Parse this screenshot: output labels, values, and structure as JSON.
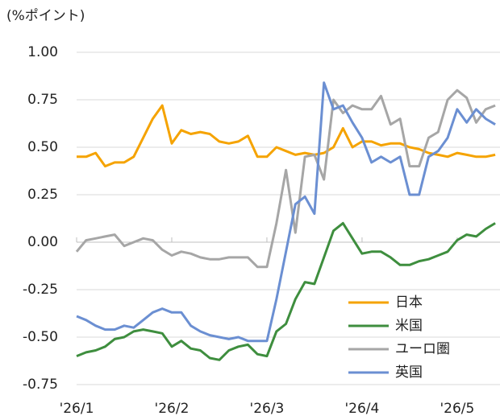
{
  "chart_data": {
    "type": "line",
    "y_axis_label": "(%ポイント)",
    "x": [
      0,
      2,
      4,
      6,
      8,
      10,
      12,
      14,
      16,
      18,
      20,
      22,
      24,
      26,
      28,
      30,
      32,
      34,
      36,
      38,
      40,
      42,
      44,
      46,
      48,
      50,
      52,
      54,
      56,
      58,
      60,
      62,
      64,
      66,
      68,
      70,
      72,
      74,
      76,
      78,
      80,
      82,
      84,
      86,
      88
    ],
    "xlim": [
      0,
      89
    ],
    "xticks": [
      {
        "value": 0,
        "label": "'26/1"
      },
      {
        "value": 20,
        "label": "'26/2"
      },
      {
        "value": 40,
        "label": "'26/3"
      },
      {
        "value": 60,
        "label": "'26/4"
      },
      {
        "value": 80,
        "label": "'26/5"
      }
    ],
    "ylim": [
      -0.75,
      1.0
    ],
    "yticks": [
      {
        "value": 1.0,
        "label": "1.00"
      },
      {
        "value": 0.75,
        "label": "0.75"
      },
      {
        "value": 0.5,
        "label": "0.50"
      },
      {
        "value": 0.25,
        "label": "0.25"
      },
      {
        "value": 0,
        "label": "0.00"
      },
      {
        "value": -0.25,
        "label": "-0.25"
      },
      {
        "value": -0.5,
        "label": "-0.50"
      },
      {
        "value": -0.75,
        "label": "-0.75"
      }
    ],
    "grid": true,
    "legend": "lower-right",
    "series": [
      {
        "name": "日本",
        "color": "#f5a300",
        "values": [
          0.45,
          0.45,
          0.47,
          0.4,
          0.42,
          0.42,
          0.45,
          0.55,
          0.65,
          0.72,
          0.52,
          0.59,
          0.57,
          0.58,
          0.57,
          0.53,
          0.52,
          0.53,
          0.56,
          0.45,
          0.45,
          0.5,
          0.48,
          0.46,
          0.47,
          0.46,
          0.47,
          0.5,
          0.6,
          0.5,
          0.53,
          0.53,
          0.51,
          0.52,
          0.52,
          0.5,
          0.49,
          0.47,
          0.46,
          0.45,
          0.47,
          0.46,
          0.45,
          0.45,
          0.46
        ]
      },
      {
        "name": "米国",
        "color": "#3e8e3e",
        "values": [
          -0.6,
          -0.58,
          -0.57,
          -0.55,
          -0.51,
          -0.5,
          -0.47,
          -0.46,
          -0.47,
          -0.48,
          -0.55,
          -0.52,
          -0.56,
          -0.57,
          -0.61,
          -0.62,
          -0.57,
          -0.55,
          -0.54,
          -0.59,
          -0.6,
          -0.47,
          -0.43,
          -0.3,
          -0.21,
          -0.22,
          -0.08,
          0.06,
          0.1,
          0.02,
          -0.06,
          -0.05,
          -0.05,
          -0.08,
          -0.12,
          -0.12,
          -0.1,
          -0.09,
          -0.07,
          -0.05,
          0.01,
          0.04,
          0.03,
          0.07,
          0.1
        ]
      },
      {
        "name": "ユーロ圏",
        "color": "#a6a6a6",
        "values": [
          -0.05,
          0.01,
          0.02,
          0.03,
          0.04,
          -0.02,
          0.0,
          0.02,
          0.01,
          -0.04,
          -0.07,
          -0.05,
          -0.06,
          -0.08,
          -0.09,
          -0.09,
          -0.08,
          -0.08,
          -0.08,
          -0.13,
          -0.13,
          0.1,
          0.38,
          0.05,
          0.45,
          0.46,
          0.33,
          0.75,
          0.68,
          0.72,
          0.7,
          0.7,
          0.77,
          0.62,
          0.65,
          0.4,
          0.4,
          0.55,
          0.58,
          0.75,
          0.8,
          0.76,
          0.63,
          0.7,
          0.72
        ]
      },
      {
        "name": "英国",
        "color": "#6b8fd2",
        "values": [
          -0.39,
          -0.41,
          -0.44,
          -0.46,
          -0.46,
          -0.44,
          -0.45,
          -0.41,
          -0.37,
          -0.35,
          -0.37,
          -0.37,
          -0.44,
          -0.47,
          -0.49,
          -0.5,
          -0.51,
          -0.5,
          -0.52,
          -0.52,
          -0.52,
          -0.3,
          -0.05,
          0.2,
          0.24,
          0.15,
          0.84,
          0.7,
          0.72,
          0.63,
          0.55,
          0.42,
          0.45,
          0.42,
          0.45,
          0.25,
          0.25,
          0.45,
          0.48,
          0.55,
          0.7,
          0.63,
          0.7,
          0.65,
          0.62
        ]
      }
    ]
  }
}
